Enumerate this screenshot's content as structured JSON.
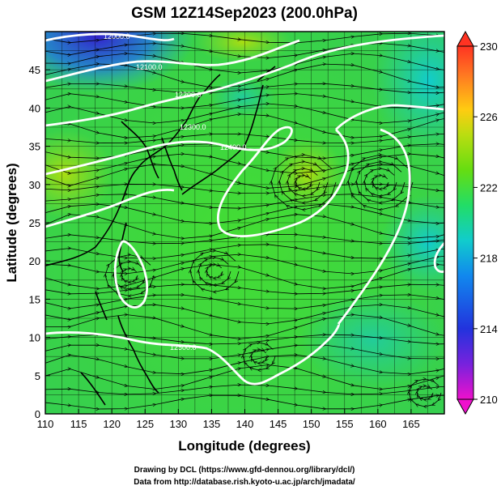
{
  "title": "GSM 12Z14Sep2023 (200.0hPa)",
  "x_axis": {
    "label": "Longitude (degrees)",
    "range": [
      110,
      170
    ],
    "ticks": [
      110,
      115,
      120,
      125,
      130,
      135,
      140,
      145,
      150,
      155,
      160,
      165
    ]
  },
  "y_axis": {
    "label": "Latitude  (degrees)",
    "range": [
      0,
      50
    ],
    "ticks": [
      0,
      5,
      10,
      15,
      20,
      25,
      30,
      35,
      40,
      45
    ]
  },
  "colorbar": {
    "ticks": [
      210,
      214,
      218,
      222,
      226,
      230
    ],
    "range": [
      210,
      230
    ],
    "colors": [
      "#ee11cc",
      "#7722dd",
      "#2233dd",
      "#1188ee",
      "#11cccc",
      "#22dd88",
      "#44dd22",
      "#99dd11",
      "#dddd11",
      "#ffaa11",
      "#ff4422"
    ]
  },
  "contours": [
    {
      "label": "12000.0"
    },
    {
      "label": "12100.0"
    },
    {
      "label": "12200.0"
    },
    {
      "label": "12300.0"
    },
    {
      "label": "12400.0"
    },
    {
      "label": "12500.0"
    }
  ],
  "credits": {
    "line1": "Drawing by DCL (https://www.gfd-dennou.org/library/dcl/)",
    "line2": "Data from http://database.rish.kyoto-u.ac.jp/arch/jmadata/"
  }
}
